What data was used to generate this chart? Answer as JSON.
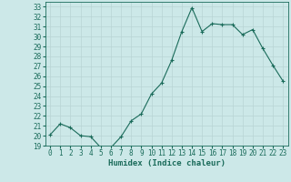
{
  "xlabel": "Humidex (Indice chaleur)",
  "x": [
    0,
    1,
    2,
    3,
    4,
    5,
    6,
    7,
    8,
    9,
    10,
    11,
    12,
    13,
    14,
    15,
    16,
    17,
    18,
    19,
    20,
    21,
    22,
    23
  ],
  "y": [
    20.1,
    21.2,
    20.8,
    20.0,
    19.9,
    18.8,
    18.8,
    19.9,
    21.5,
    22.2,
    24.2,
    25.3,
    27.6,
    30.5,
    32.9,
    30.5,
    31.3,
    31.2,
    31.2,
    30.2,
    30.7,
    28.8,
    27.1,
    25.5
  ],
  "line_color": "#1a6b5a",
  "bg_color": "#cce8e8",
  "grid_color": "#b8d4d4",
  "tick_color": "#1a6b5a",
  "ylim": [
    19,
    33.5
  ],
  "yticks": [
    19,
    20,
    21,
    22,
    23,
    24,
    25,
    26,
    27,
    28,
    29,
    30,
    31,
    32,
    33
  ],
  "xticks": [
    0,
    1,
    2,
    3,
    4,
    5,
    6,
    7,
    8,
    9,
    10,
    11,
    12,
    13,
    14,
    15,
    16,
    17,
    18,
    19,
    20,
    21,
    22,
    23
  ],
  "marker": "+",
  "markersize": 3,
  "linewidth": 0.8,
  "xlabel_fontsize": 6.5,
  "tick_fontsize": 5.5
}
